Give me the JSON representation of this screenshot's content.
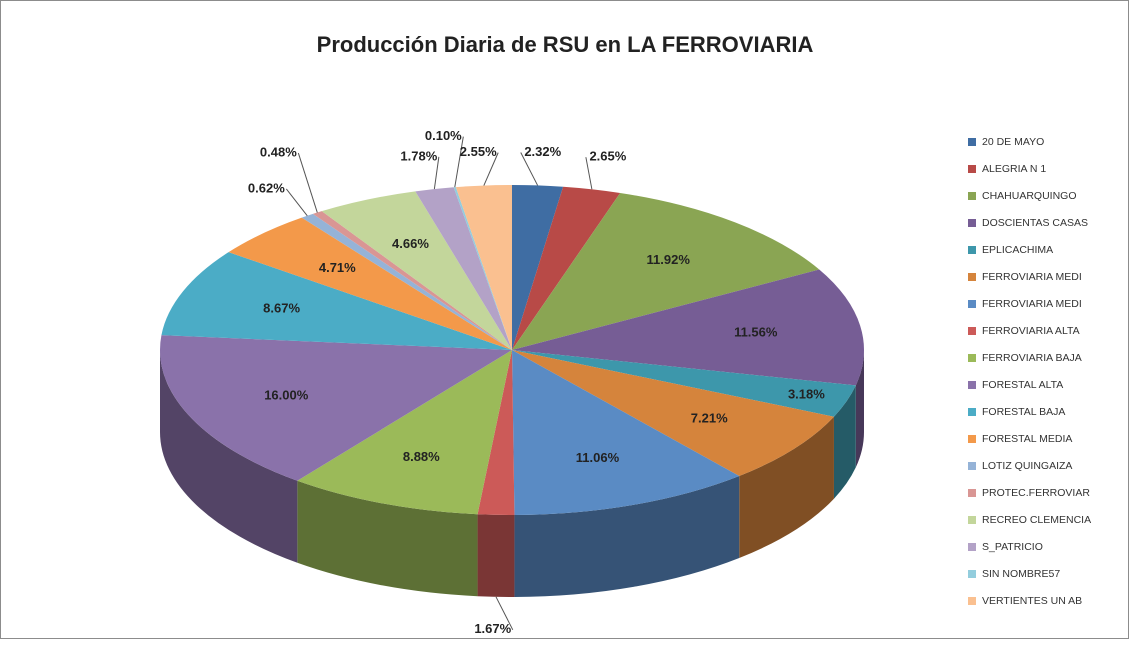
{
  "chart_data": {
    "type": "pie3d",
    "title": "Producción Diaria de RSU en LA FERROVIARIA",
    "categories": [
      "20 DE MAYO",
      "ALEGRIA N 1",
      "CHAHUARQUINGO",
      "DOSCIENTAS CASAS",
      "EPLICACHIMA",
      "FERROVIARIA MEDI",
      "FERROVIARIA MEDI",
      "FERROVIARIA ALTA",
      "FERROVIARIA BAJA",
      "FORESTAL ALTA",
      "FORESTAL BAJA",
      "FORESTAL MEDIA",
      "LOTIZ QUINGAIZA",
      "PROTEC.FERROVIAR",
      "RECREO CLEMENCIA",
      "S_PATRICIO",
      "SIN NOMBRE57",
      "VERTIENTES UN AB"
    ],
    "values": [
      2.32,
      2.65,
      11.92,
      11.56,
      3.18,
      7.21,
      11.06,
      1.67,
      8.88,
      16.0,
      8.67,
      4.71,
      0.62,
      0.48,
      4.66,
      1.78,
      0.1,
      2.55
    ],
    "value_labels": [
      "2.32%",
      "2.65%",
      "11.92%",
      "11.56%",
      "3.18%",
      "7.21%",
      "11.06%",
      "1.67%",
      "8.88%",
      "16.00%",
      "8.67%",
      "4.71%",
      "0.62%",
      "0.48%",
      "4.66%",
      "1.78%",
      "0.10%",
      "2.55%"
    ],
    "colors": [
      "#3f6da3",
      "#b84a47",
      "#8aa553",
      "#765d95",
      "#3d97ab",
      "#d5843c",
      "#5a8bc4",
      "#cc5a58",
      "#9bba59",
      "#8a72aa",
      "#4bacc6",
      "#f3994a",
      "#95b3d7",
      "#d99694",
      "#c3d69b",
      "#b3a2c7",
      "#93cddd",
      "#fac090"
    ],
    "legend": "right"
  }
}
